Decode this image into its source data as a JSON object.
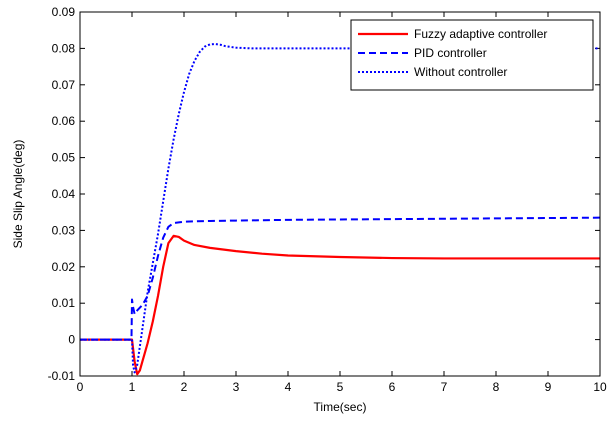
{
  "chart_data": {
    "type": "line",
    "title": "",
    "xlabel": "Time(sec)",
    "ylabel": "Side Slip Angle(deg)",
    "xlim": [
      0,
      10
    ],
    "ylim": [
      -0.01,
      0.09
    ],
    "xticks": [
      "0",
      "1",
      "2",
      "3",
      "4",
      "5",
      "6",
      "7",
      "8",
      "9",
      "10"
    ],
    "yticks": [
      "-0.01",
      "0",
      "0.01",
      "0.02",
      "0.03",
      "0.04",
      "0.05",
      "0.06",
      "0.07",
      "0.08",
      "0.09"
    ],
    "grid": false,
    "legend_position": "top-right",
    "series": [
      {
        "name": "Fuzzy adaptive controller",
        "color": "#ff0000",
        "style": "solid",
        "x": [
          0,
          1.0,
          1.05,
          1.1,
          1.15,
          1.2,
          1.3,
          1.4,
          1.5,
          1.6,
          1.7,
          1.8,
          1.9,
          2.0,
          2.2,
          2.5,
          3.0,
          3.5,
          4.0,
          5.0,
          6.0,
          7.0,
          8.0,
          9.0,
          10.0
        ],
        "y": [
          0,
          0,
          -0.006,
          -0.0095,
          -0.0085,
          -0.006,
          -0.001,
          0.005,
          0.012,
          0.02,
          0.0265,
          0.0285,
          0.0282,
          0.0272,
          0.026,
          0.0252,
          0.0243,
          0.0236,
          0.0231,
          0.0227,
          0.0224,
          0.0223,
          0.0223,
          0.0223,
          0.0223
        ]
      },
      {
        "name": "PID controller",
        "color": "#0000ff",
        "style": "dashed",
        "x": [
          0,
          0.99,
          1.0,
          1.02,
          1.05,
          1.1,
          1.2,
          1.3,
          1.4,
          1.5,
          1.6,
          1.7,
          1.8,
          1.9,
          2.0,
          2.5,
          3.0,
          4.0,
          5.0,
          6.0,
          7.0,
          8.0,
          9.0,
          10.0
        ],
        "y": [
          0,
          0,
          0.011,
          0.009,
          0.007,
          0.008,
          0.0095,
          0.012,
          0.017,
          0.023,
          0.028,
          0.031,
          0.032,
          0.0322,
          0.0324,
          0.0326,
          0.0327,
          0.0329,
          0.033,
          0.0331,
          0.0332,
          0.0333,
          0.0334,
          0.0335
        ]
      },
      {
        "name": "Without controller",
        "color": "#0000ff",
        "style": "dotted",
        "x": [
          0,
          1.0,
          1.02,
          1.05,
          1.1,
          1.2,
          1.3,
          1.4,
          1.5,
          1.6,
          1.7,
          1.8,
          1.9,
          2.0,
          2.1,
          2.2,
          2.3,
          2.4,
          2.5,
          2.6,
          2.7,
          2.8,
          3.0,
          3.3,
          3.6,
          4.0,
          5.0,
          6.0,
          7.0,
          8.0,
          9.0,
          10.0
        ],
        "y": [
          0,
          0,
          -0.007,
          -0.009,
          -0.007,
          0.003,
          0.013,
          0.021,
          0.029,
          0.038,
          0.047,
          0.055,
          0.062,
          0.068,
          0.073,
          0.0765,
          0.079,
          0.0805,
          0.0811,
          0.0812,
          0.081,
          0.0806,
          0.0802,
          0.08,
          0.08,
          0.08,
          0.08,
          0.08,
          0.08,
          0.08,
          0.08,
          0.08
        ]
      }
    ]
  }
}
